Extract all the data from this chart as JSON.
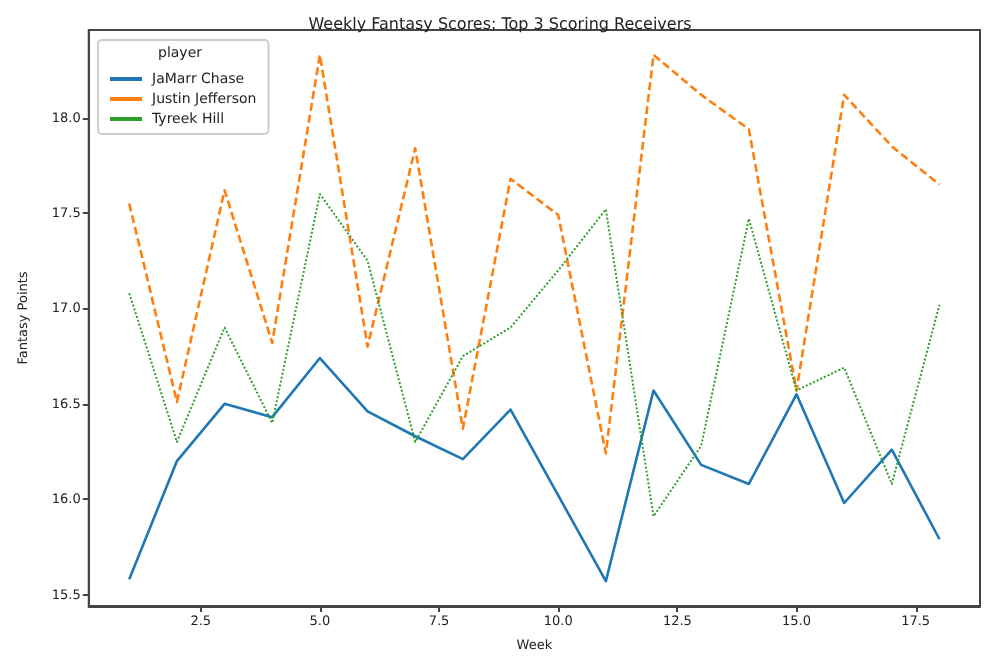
{
  "chart_data": {
    "type": "line",
    "title": "Weekly Fantasy Scores: Top 3 Scoring Receivers",
    "xlabel": "Week",
    "ylabel": "Fantasy Points",
    "legend_title": "player",
    "legend": "top left",
    "grid": false,
    "x": [
      1,
      2,
      3,
      4,
      5,
      6,
      7,
      8,
      9,
      10,
      11,
      12,
      13,
      14,
      15,
      16,
      17,
      18
    ],
    "xlim": [
      0.15,
      18.85
    ],
    "xticks": [
      2.5,
      {
        "value": 5,
        "label": "5.0"
      },
      7.5,
      {
        "value": 10,
        "label": "10.0"
      },
      12.5,
      {
        "value": 15,
        "label": "15.0"
      },
      17.5
    ],
    "ylim": [
      15.44,
      18.46
    ],
    "yticks": [
      15.5,
      {
        "value": 16,
        "label": "16.0"
      },
      16.5,
      {
        "value": 17,
        "label": "17.0"
      },
      17.5,
      {
        "value": 18,
        "label": "18.0"
      }
    ],
    "series": [
      {
        "name": "JaMarr Chase",
        "color": "#1f77b4",
        "line_style": "solid",
        "values": [
          15.58,
          16.2,
          16.5,
          16.43,
          16.74,
          16.46,
          16.33,
          16.21,
          16.47,
          16.02,
          15.57,
          16.57,
          16.18,
          16.08,
          16.55,
          15.98,
          16.26,
          15.79
        ]
      },
      {
        "name": "Justin Jefferson",
        "color": "#ff7f0e",
        "line_style": "dashed",
        "values": [
          17.55,
          16.51,
          17.62,
          16.82,
          18.33,
          16.8,
          17.84,
          16.37,
          17.68,
          17.49,
          16.24,
          18.33,
          18.12,
          17.94,
          16.57,
          18.12,
          17.85,
          17.65
        ]
      },
      {
        "name": "Tyreek Hill",
        "color": "#2ca02c",
        "line_style": "dotted",
        "values": [
          17.08,
          16.3,
          16.9,
          16.4,
          17.6,
          17.25,
          16.3,
          16.75,
          16.9,
          17.2,
          17.52,
          15.91,
          16.28,
          17.47,
          16.57,
          16.69,
          16.08,
          17.02
        ]
      }
    ]
  }
}
